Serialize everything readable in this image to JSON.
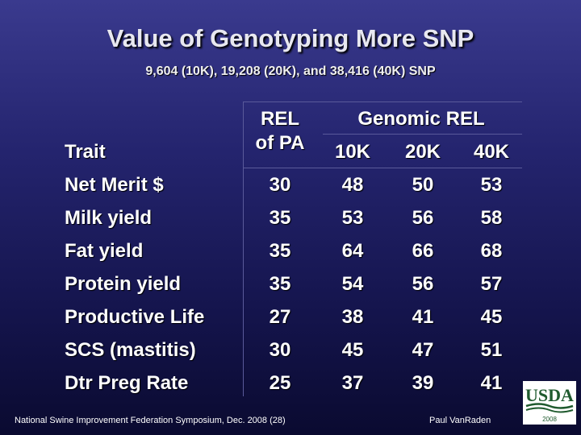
{
  "title": "Value of Genotyping More SNP",
  "subtitle": "9,604 (10K), 19,208 (20K), and 38,416 (40K) SNP",
  "table": {
    "header_rel_line1": "REL",
    "header_rel_line2": "of PA",
    "header_genomic": "Genomic REL",
    "header_trait": "Trait",
    "header_10k": "10K",
    "header_20k": "20K",
    "header_40k": "40K",
    "rows": [
      {
        "trait": "Net Merit $",
        "rel_pa": "30",
        "k10": "48",
        "k20": "50",
        "k40": "53"
      },
      {
        "trait": "Milk yield",
        "rel_pa": "35",
        "k10": "53",
        "k20": "56",
        "k40": "58"
      },
      {
        "trait": "Fat yield",
        "rel_pa": "35",
        "k10": "64",
        "k20": "66",
        "k40": "68"
      },
      {
        "trait": "Protein yield",
        "rel_pa": "35",
        "k10": "54",
        "k20": "56",
        "k40": "57"
      },
      {
        "trait": "Productive Life",
        "rel_pa": "27",
        "k10": "38",
        "k20": "41",
        "k40": "45"
      },
      {
        "trait": "SCS (mastitis)",
        "rel_pa": "30",
        "k10": "45",
        "k20": "47",
        "k40": "51"
      },
      {
        "trait": "Dtr Preg Rate",
        "rel_pa": "25",
        "k10": "37",
        "k20": "39",
        "k40": "41"
      }
    ]
  },
  "footer": {
    "left": "National Swine Improvement Federation Symposium, Dec. 2008 (28)",
    "right": "Paul VanRaden"
  },
  "logo": {
    "text": "USDA",
    "year": "2008",
    "brand_color": "#1f5a2e"
  }
}
